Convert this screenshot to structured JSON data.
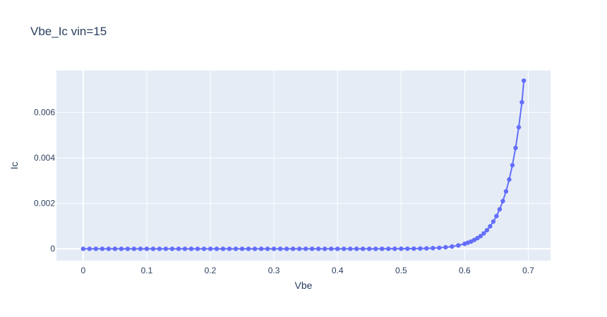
{
  "chart_data": {
    "type": "scatter",
    "mode": "lines+markers",
    "title": "Vbe_Ic vin=15",
    "xlabel": "Vbe",
    "ylabel": "Ic",
    "xlim": [
      -0.042,
      0.735
    ],
    "ylim": [
      -0.00052,
      0.00785
    ],
    "x_ticks": [
      0,
      0.1,
      0.2,
      0.3,
      0.4,
      0.5,
      0.6,
      0.7
    ],
    "x_tick_labels": [
      "0",
      "0.1",
      "0.2",
      "0.3",
      "0.4",
      "0.5",
      "0.6",
      "0.7"
    ],
    "y_ticks": [
      0,
      0.002,
      0.004,
      0.006
    ],
    "y_tick_labels": [
      "0",
      "0.002",
      "0.004",
      "0.006"
    ],
    "grid": true,
    "legend": "none",
    "colors": {
      "series": "#636efa",
      "plot_bg": "#e5ecf6",
      "grid": "#ffffff",
      "text": "#2a3f5f"
    },
    "series": [
      {
        "x": [
          0,
          0.01,
          0.02,
          0.03,
          0.04,
          0.05,
          0.06,
          0.07,
          0.08,
          0.09,
          0.1,
          0.11,
          0.12,
          0.13,
          0.14,
          0.15,
          0.16,
          0.17,
          0.18,
          0.19,
          0.2,
          0.21,
          0.22,
          0.23,
          0.24,
          0.25,
          0.26,
          0.27,
          0.28,
          0.29,
          0.3,
          0.31,
          0.32,
          0.33,
          0.34,
          0.35,
          0.36,
          0.37,
          0.38,
          0.39,
          0.4,
          0.41,
          0.42,
          0.43,
          0.44,
          0.45,
          0.46,
          0.47,
          0.48,
          0.49,
          0.5,
          0.51,
          0.52,
          0.53,
          0.54,
          0.55,
          0.56,
          0.57,
          0.58,
          0.59,
          0.6,
          0.605,
          0.61,
          0.615,
          0.62,
          0.625,
          0.63,
          0.635,
          0.64,
          0.645,
          0.65,
          0.655,
          0.66,
          0.665,
          0.67,
          0.675,
          0.68,
          0.685,
          0.69,
          0.693
        ],
        "y": [
          0,
          0,
          0,
          0,
          0,
          0,
          0,
          0,
          0,
          0,
          0,
          0,
          0,
          0,
          0,
          0,
          0,
          0,
          0,
          0,
          0,
          0,
          0,
          0,
          0,
          0,
          0,
          0,
          0,
          0,
          0,
          0,
          0,
          0,
          0,
          0,
          0,
          0,
          0,
          0,
          0,
          0,
          0,
          0,
          0,
          0,
          0,
          1e-06,
          2e-06,
          3e-06,
          4e-06,
          6e-06,
          9e-06,
          1.3e-05,
          2e-05,
          3e-05,
          4.5e-05,
          7e-05,
          0.0001,
          0.00015,
          0.00022,
          0.00027,
          0.00032,
          0.00039,
          0.00047,
          0.00056,
          0.00068,
          0.00082,
          0.00099,
          0.0012,
          0.00144,
          0.00174,
          0.0021,
          0.00253,
          0.00305,
          0.00368,
          0.00444,
          0.00535,
          0.00645,
          0.0074
        ]
      }
    ]
  }
}
